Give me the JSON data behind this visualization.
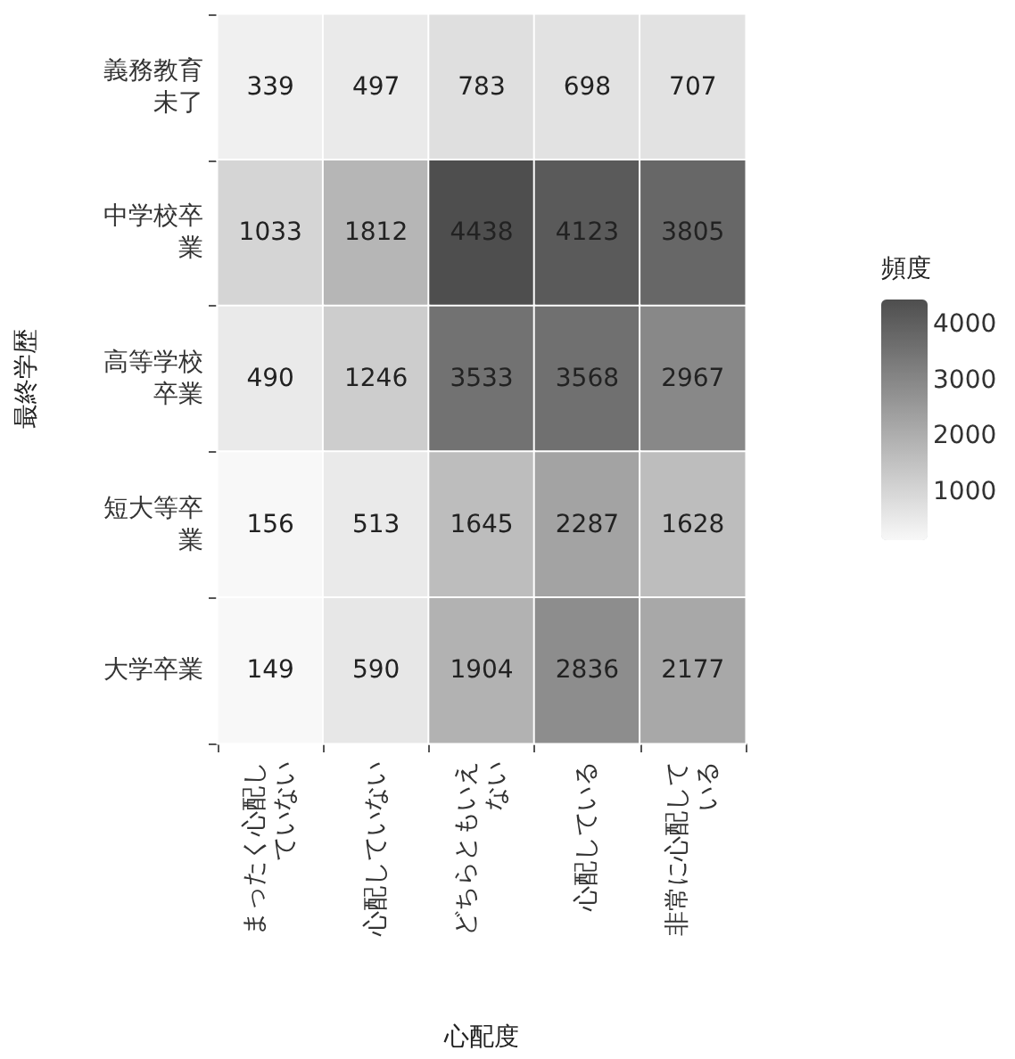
{
  "chart_data": {
    "type": "heatmap",
    "xlabel": "心配度",
    "ylabel": "最終学歴",
    "legend_title": "頻度",
    "categories": [
      "まったく心配していない",
      "心配していない",
      "どちらともいえない",
      "心配している",
      "非常に心配している"
    ],
    "y_categories": [
      "義務教育未了",
      "中学校卒業",
      "高等学校卒業",
      "短大等卒業",
      "大学卒業"
    ],
    "cells": [
      [
        339,
        497,
        783,
        698,
        707
      ],
      [
        1033,
        1812,
        4438,
        4123,
        3805
      ],
      [
        490,
        1246,
        3533,
        3568,
        2967
      ],
      [
        156,
        513,
        1645,
        2287,
        1628
      ],
      [
        149,
        590,
        1904,
        2836,
        2177
      ]
    ],
    "clim": [
      149,
      4438
    ],
    "cticks": [
      1000,
      2000,
      3000,
      4000
    ],
    "data_labels": true
  }
}
